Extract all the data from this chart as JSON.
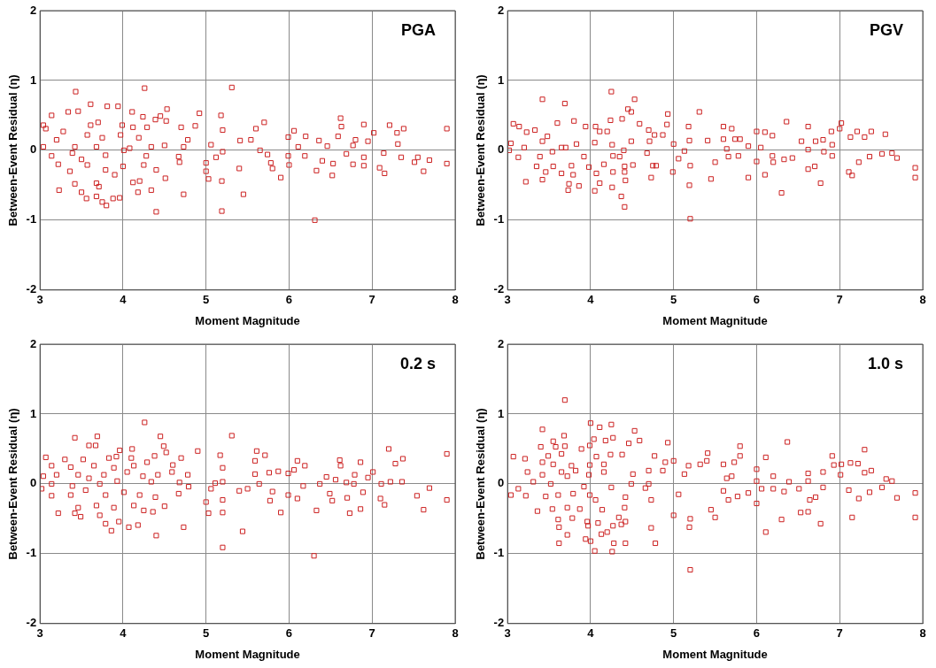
{
  "chart_data": [
    {
      "type": "scatter",
      "title": "PGA",
      "xlabel": "Moment Magnitude",
      "ylabel": "Between-Event Residual (η)",
      "xlim": [
        3,
        8
      ],
      "xticks": [
        3,
        4,
        5,
        6,
        7,
        8
      ],
      "ylim": [
        -2,
        2
      ],
      "yticks": [
        -2,
        -1,
        0,
        1,
        2
      ],
      "grid": true,
      "marker": "square",
      "color": "#cc2222",
      "x": [
        3.43,
        4.26,
        5.31,
        3.61,
        3.81,
        3.94,
        3.34,
        3.46,
        3.14,
        4.53,
        4.11,
        4.92,
        5.18,
        4.24,
        4.45,
        4.39,
        4.52,
        3.04,
        3.07,
        3.28,
        3.61,
        3.7,
        3.99,
        4.12,
        4.29,
        4.7,
        4.87,
        5.2,
        5.6,
        5.7,
        6.62,
        6.63,
        6.9,
        7.21,
        7.38,
        7.9,
        7.02,
        7.3,
        6.06,
        6.2,
        5.99,
        3.2,
        3.57,
        3.75,
        3.97,
        4.19,
        4.78,
        5.54,
        5.41,
        6.36,
        6.59,
        6.8,
        6.95,
        7.31,
        3.04,
        3.42,
        3.68,
        4.08,
        4.34,
        4.5,
        4.73,
        5.06,
        6.46,
        6.77,
        6.11,
        3.14,
        3.39,
        3.79,
        4.01,
        4.28,
        4.67,
        5.2,
        5.65,
        5.74,
        5.99,
        6.19,
        6.69,
        6.9,
        7.14,
        7.35,
        7.55,
        7.69,
        3.22,
        3.5,
        3.57,
        4.0,
        4.25,
        4.68,
        5.0,
        5.12,
        5.78,
        6.0,
        6.4,
        6.53,
        6.77,
        6.9,
        7.09,
        7.51,
        7.9,
        3.36,
        3.79,
        3.9,
        4.4,
        5.0,
        5.4,
        5.8,
        6.33,
        7.15,
        7.62,
        3.42,
        3.68,
        4.12,
        4.2,
        4.51,
        5.03,
        5.19,
        5.9,
        6.52,
        3.23,
        3.5,
        3.71,
        4.18,
        4.34,
        4.73,
        5.45,
        3.56,
        3.68,
        3.88,
        3.96,
        3.75,
        3.8,
        4.4,
        5.19,
        6.31
      ],
      "values": [
        0.84,
        0.89,
        0.9,
        0.66,
        0.63,
        0.63,
        0.55,
        0.56,
        0.5,
        0.59,
        0.55,
        0.53,
        0.5,
        0.48,
        0.49,
        0.44,
        0.42,
        0.36,
        0.31,
        0.27,
        0.36,
        0.4,
        0.36,
        0.33,
        0.33,
        0.33,
        0.35,
        0.29,
        0.31,
        0.4,
        0.46,
        0.34,
        0.37,
        0.36,
        0.31,
        0.31,
        0.25,
        0.25,
        0.28,
        0.2,
        0.19,
        0.15,
        0.22,
        0.18,
        0.22,
        0.18,
        0.15,
        0.15,
        0.14,
        0.14,
        0.2,
        0.15,
        0.13,
        0.09,
        0.05,
        0.05,
        0.05,
        0.03,
        0.05,
        0.07,
        0.05,
        0.08,
        0.06,
        0.07,
        0.05,
        -0.08,
        -0.04,
        -0.07,
        0.0,
        -0.08,
        -0.09,
        -0.02,
        0.0,
        -0.06,
        -0.08,
        -0.08,
        -0.05,
        -0.1,
        -0.04,
        -0.1,
        -0.1,
        -0.14,
        -0.2,
        -0.13,
        -0.21,
        -0.23,
        -0.21,
        -0.17,
        -0.18,
        -0.1,
        -0.18,
        -0.21,
        -0.15,
        -0.19,
        -0.2,
        -0.22,
        -0.25,
        -0.17,
        -0.19,
        -0.3,
        -0.28,
        -0.35,
        -0.28,
        -0.3,
        -0.26,
        -0.26,
        -0.29,
        -0.33,
        -0.3,
        -0.48,
        -0.47,
        -0.46,
        -0.44,
        -0.4,
        -0.41,
        -0.44,
        -0.39,
        -0.36,
        -0.57,
        -0.6,
        -0.52,
        -0.6,
        -0.57,
        -0.63,
        -0.63,
        -0.69,
        -0.66,
        -0.69,
        -0.68,
        -0.74,
        -0.79,
        -0.88,
        -0.87,
        -1.0
      ]
    },
    {
      "type": "scatter",
      "title": "PGV",
      "xlabel": "Moment Magnitude",
      "ylabel": "Between-Event Residual (η)",
      "xlim": [
        3,
        8
      ],
      "xticks": [
        3,
        4,
        5,
        6,
        7,
        8
      ],
      "ylim": [
        -2,
        2
      ],
      "yticks": [
        -2,
        -1,
        0,
        1,
        2
      ],
      "grid": true,
      "marker": "square",
      "color": "#cc2222",
      "x": [
        4.25,
        3.42,
        4.53,
        3.69,
        4.45,
        4.49,
        5.31,
        4.93,
        3.07,
        3.14,
        3.6,
        3.8,
        4.06,
        4.24,
        4.38,
        4.59,
        4.92,
        5.18,
        5.6,
        5.7,
        6.36,
        6.62,
        7.02,
        7.0,
        6.9,
        7.21,
        7.38,
        7.55,
        6.0,
        6.1,
        6.19,
        3.23,
        3.33,
        3.94,
        4.11,
        4.2,
        4.7,
        4.77,
        4.87,
        4.49,
        4.71,
        5.19,
        5.41,
        5.6,
        5.74,
        5.8,
        7.13,
        7.3,
        6.54,
        6.8,
        6.71,
        3.04,
        3.2,
        3.42,
        3.48,
        3.65,
        3.7,
        3.83,
        4.05,
        4.26,
        4.4,
        5.0,
        5.9,
        6.05,
        5.64,
        6.62,
        6.91,
        6.81,
        3.02,
        4.68,
        5.13,
        7.63,
        7.51,
        7.36,
        7.69,
        3.13,
        3.39,
        3.54,
        3.92,
        4.27,
        4.35,
        5.06,
        5.66,
        5.78,
        6.0,
        6.19,
        6.2,
        6.33,
        6.43,
        6.91,
        7.23,
        3.35,
        3.55,
        3.77,
        3.98,
        4.16,
        4.41,
        4.51,
        4.75,
        4.79,
        5.2,
        5.5,
        6.7,
        6.62,
        7.91,
        3.46,
        3.65,
        3.79,
        4.07,
        4.27,
        4.41,
        4.99,
        7.11,
        7.15,
        3.22,
        3.42,
        3.74,
        3.86,
        4.11,
        4.42,
        4.73,
        5.45,
        5.9,
        6.1,
        7.91,
        6.77,
        3.73,
        4.05,
        4.26,
        5.19,
        4.37,
        4.41,
        6.3,
        5.2
      ],
      "values": [
        0.84,
        0.73,
        0.73,
        0.67,
        0.59,
        0.55,
        0.55,
        0.52,
        0.38,
        0.34,
        0.39,
        0.42,
        0.34,
        0.43,
        0.45,
        0.38,
        0.37,
        0.34,
        0.34,
        0.31,
        0.41,
        0.34,
        0.39,
        0.31,
        0.27,
        0.27,
        0.27,
        0.23,
        0.27,
        0.26,
        0.21,
        0.26,
        0.29,
        0.34,
        0.27,
        0.27,
        0.29,
        0.22,
        0.22,
        0.13,
        0.13,
        0.14,
        0.14,
        0.16,
        0.16,
        0.16,
        0.19,
        0.19,
        0.13,
        0.15,
        0.13,
        0.1,
        0.04,
        0.13,
        0.2,
        0.04,
        0.04,
        0.09,
        0.11,
        0.08,
        0.0,
        0.09,
        0.06,
        0.04,
        0.02,
        0.01,
        0.08,
        -0.02,
        0.0,
        -0.04,
        -0.01,
        -0.04,
        -0.05,
        -0.09,
        -0.11,
        -0.1,
        -0.09,
        -0.02,
        -0.09,
        -0.08,
        -0.09,
        -0.12,
        -0.09,
        -0.08,
        -0.16,
        -0.08,
        -0.17,
        -0.13,
        -0.11,
        -0.08,
        -0.17,
        -0.23,
        -0.23,
        -0.22,
        -0.24,
        -0.2,
        -0.23,
        -0.21,
        -0.22,
        -0.22,
        -0.22,
        -0.17,
        -0.23,
        -0.27,
        -0.25,
        -0.31,
        -0.33,
        -0.35,
        -0.33,
        -0.31,
        -0.31,
        -0.31,
        -0.31,
        -0.36,
        -0.45,
        -0.42,
        -0.48,
        -0.51,
        -0.47,
        -0.43,
        -0.39,
        -0.41,
        -0.39,
        -0.35,
        -0.39,
        -0.47,
        -0.57,
        -0.58,
        -0.53,
        -0.5,
        -0.66,
        -0.81,
        -0.61,
        -0.98
      ]
    },
    {
      "type": "scatter",
      "title": "0.2 s",
      "xlabel": "Moment Magnitude",
      "ylabel": "Between-Event Residual (η)",
      "xlim": [
        3,
        8
      ],
      "xticks": [
        3,
        4,
        5,
        6,
        7,
        8
      ],
      "ylim": [
        -2,
        2
      ],
      "yticks": [
        -2,
        -1,
        0,
        1,
        2
      ],
      "grid": true,
      "marker": "square",
      "color": "#cc2222",
      "x": [
        4.26,
        5.31,
        3.42,
        3.69,
        4.45,
        3.59,
        3.67,
        4.49,
        4.9,
        3.96,
        4.11,
        4.52,
        5.61,
        5.71,
        7.2,
        7.9,
        5.17,
        3.07,
        3.3,
        3.52,
        3.83,
        3.92,
        4.1,
        4.38,
        4.7,
        6.61,
        7.37,
        5.59,
        6.1,
        6.86,
        7.28,
        3.14,
        3.37,
        3.65,
        3.89,
        4.13,
        4.29,
        4.6,
        5.2,
        6.19,
        6.62,
        6.06,
        7.01,
        3.04,
        3.2,
        3.46,
        3.59,
        3.77,
        4.05,
        4.24,
        4.42,
        4.59,
        4.78,
        5.59,
        5.76,
        5.87,
        5.99,
        6.45,
        6.79,
        6.95,
        6.56,
        6.69,
        7.22,
        7.36,
        7.11,
        3.14,
        3.02,
        3.39,
        3.72,
        3.93,
        4.34,
        4.68,
        5.11,
        5.2,
        5.64,
        6.17,
        6.37,
        6.78,
        7.69,
        3.14,
        3.37,
        3.55,
        3.79,
        4.01,
        4.2,
        4.67,
        4.79,
        5.06,
        5.4,
        5.5,
        5.8,
        5.99,
        6.49,
        6.89,
        7.54,
        7.9,
        4.39,
        5.0,
        5.2,
        5.77,
        6.1,
        6.52,
        6.7,
        7.1,
        7.15,
        3.46,
        3.68,
        3.89,
        4.13,
        4.25,
        4.5,
        3.22,
        3.42,
        3.49,
        3.72,
        4.36,
        5.03,
        5.2,
        5.9,
        6.33,
        6.86,
        6.73,
        7.62,
        3.79,
        3.95,
        3.86,
        4.07,
        4.18,
        4.73,
        5.44,
        4.4,
        5.2,
        6.3
      ],
      "values": [
        0.88,
        0.69,
        0.66,
        0.68,
        0.68,
        0.55,
        0.55,
        0.54,
        0.47,
        0.48,
        0.5,
        0.45,
        0.47,
        0.41,
        0.5,
        0.43,
        0.41,
        0.38,
        0.35,
        0.35,
        0.37,
        0.39,
        0.37,
        0.4,
        0.37,
        0.34,
        0.36,
        0.33,
        0.33,
        0.31,
        0.29,
        0.26,
        0.24,
        0.26,
        0.23,
        0.26,
        0.31,
        0.27,
        0.23,
        0.26,
        0.26,
        0.2,
        0.17,
        0.11,
        0.13,
        0.13,
        0.08,
        0.13,
        0.17,
        0.11,
        0.13,
        0.17,
        0.13,
        0.14,
        0.16,
        0.18,
        0.15,
        0.1,
        0.13,
        0.09,
        0.06,
        0.02,
        0.03,
        0.03,
        0.0,
        0.0,
        -0.07,
        -0.03,
        0.0,
        0.04,
        0.03,
        0.02,
        0.01,
        0.03,
        0.0,
        -0.03,
        0.0,
        0.0,
        -0.06,
        -0.17,
        -0.16,
        -0.09,
        -0.16,
        -0.12,
        -0.16,
        -0.14,
        -0.04,
        -0.07,
        -0.1,
        -0.07,
        -0.11,
        -0.16,
        -0.14,
        -0.12,
        -0.17,
        -0.23,
        -0.19,
        -0.26,
        -0.23,
        -0.24,
        -0.21,
        -0.24,
        -0.2,
        -0.21,
        -0.3,
        -0.34,
        -0.31,
        -0.34,
        -0.31,
        -0.38,
        -0.32,
        -0.42,
        -0.42,
        -0.47,
        -0.45,
        -0.4,
        -0.42,
        -0.41,
        -0.41,
        -0.38,
        -0.36,
        -0.42,
        -0.37,
        -0.57,
        -0.54,
        -0.67,
        -0.62,
        -0.59,
        -0.62,
        -0.68,
        -0.74,
        -0.91,
        -1.03
      ]
    },
    {
      "type": "scatter",
      "title": "1.0 s",
      "xlabel": "Moment Magnitude",
      "ylabel": "Between-Event Residual (η)",
      "xlim": [
        3,
        8
      ],
      "xticks": [
        3,
        4,
        5,
        6,
        7,
        8
      ],
      "ylim": [
        -2,
        2
      ],
      "yticks": [
        -2,
        -1,
        0,
        1,
        2
      ],
      "grid": true,
      "marker": "square",
      "color": "#cc2222",
      "x": [
        3.69,
        4.0,
        4.25,
        4.11,
        3.42,
        4.53,
        3.68,
        4.27,
        4.04,
        4.18,
        4.59,
        4.46,
        3.55,
        6.37,
        4.93,
        3.4,
        3.58,
        3.69,
        3.89,
        3.99,
        5.8,
        7.3,
        3.07,
        3.21,
        3.49,
        3.65,
        4.07,
        4.24,
        4.38,
        4.77,
        5.41,
        5.8,
        6.11,
        6.91,
        3.42,
        3.55,
        3.77,
        3.99,
        4.16,
        4.9,
        5.0,
        5.18,
        5.32,
        5.4,
        5.6,
        5.73,
        6.93,
        7.02,
        7.13,
        7.22,
        3.24,
        3.42,
        3.65,
        3.82,
        3.98,
        4.16,
        4.51,
        4.7,
        4.87,
        5.13,
        5.7,
        6.0,
        6.62,
        6.8,
        7.3,
        7.38,
        7.01,
        7.56,
        7.63,
        3.13,
        3.31,
        3.52,
        3.72,
        3.92,
        4.25,
        4.49,
        4.66,
        4.7,
        5.64,
        6.0,
        6.06,
        6.2,
        6.2,
        6.39,
        6.51,
        6.62,
        6.8,
        7.51,
        3.04,
        3.22,
        3.46,
        3.61,
        3.79,
        3.99,
        4.06,
        4.42,
        4.73,
        5.06,
        5.6,
        5.9,
        5.66,
        5.77,
        6.33,
        6.64,
        6.71,
        7.11,
        7.23,
        7.36,
        7.69,
        7.91,
        6.0,
        3.36,
        3.54,
        3.72,
        3.87,
        4.14,
        4.41,
        5.0,
        5.45,
        5.5,
        6.53,
        6.62,
        7.15,
        7.91,
        3.61,
        3.78,
        3.96,
        4.09,
        4.34,
        4.42,
        5.2,
        6.3,
        3.62,
        3.97,
        4.27,
        4.37,
        4.73,
        5.19,
        6.77,
        3.72,
        4.13,
        4.2,
        6.11,
        3.62,
        3.94,
        4.0,
        4.28,
        4.42,
        4.78,
        4.05,
        4.26,
        5.2
      ],
      "values": [
        1.2,
        0.87,
        0.85,
        0.81,
        0.78,
        0.76,
        0.69,
        0.66,
        0.64,
        0.62,
        0.62,
        0.58,
        0.61,
        0.6,
        0.59,
        0.53,
        0.53,
        0.54,
        0.5,
        0.55,
        0.54,
        0.49,
        0.39,
        0.36,
        0.4,
        0.43,
        0.39,
        0.42,
        0.42,
        0.4,
        0.44,
        0.4,
        0.38,
        0.4,
        0.31,
        0.28,
        0.26,
        0.27,
        0.28,
        0.31,
        0.33,
        0.26,
        0.28,
        0.33,
        0.28,
        0.31,
        0.27,
        0.28,
        0.3,
        0.29,
        0.17,
        0.13,
        0.17,
        0.19,
        0.13,
        0.17,
        0.14,
        0.19,
        0.19,
        0.14,
        0.11,
        0.21,
        0.15,
        0.17,
        0.16,
        0.19,
        0.13,
        0.07,
        0.04,
        -0.07,
        0.03,
        0.0,
        0.11,
        -0.04,
        -0.05,
        0.0,
        -0.06,
        0.0,
        0.08,
        0.04,
        -0.07,
        -0.07,
        0.11,
        0.03,
        -0.07,
        0.04,
        -0.05,
        -0.05,
        -0.16,
        -0.17,
        -0.18,
        -0.16,
        -0.14,
        -0.16,
        -0.23,
        -0.19,
        -0.23,
        -0.15,
        -0.1,
        -0.13,
        -0.23,
        -0.18,
        -0.11,
        -0.23,
        -0.19,
        -0.09,
        -0.21,
        -0.12,
        -0.2,
        -0.13,
        -0.28,
        -0.39,
        -0.36,
        -0.34,
        -0.36,
        -0.37,
        -0.34,
        -0.45,
        -0.37,
        -0.48,
        -0.41,
        -0.4,
        -0.48,
        -0.48,
        -0.51,
        -0.49,
        -0.54,
        -0.56,
        -0.48,
        -0.54,
        -0.5,
        -0.51,
        -0.62,
        -0.6,
        -0.6,
        -0.58,
        -0.63,
        -0.62,
        -0.57,
        -0.73,
        -0.72,
        -0.69,
        -0.69,
        -0.85,
        -0.79,
        -0.82,
        -0.85,
        -0.85,
        -0.85,
        -0.96,
        -0.97,
        -1.23
      ]
    }
  ]
}
